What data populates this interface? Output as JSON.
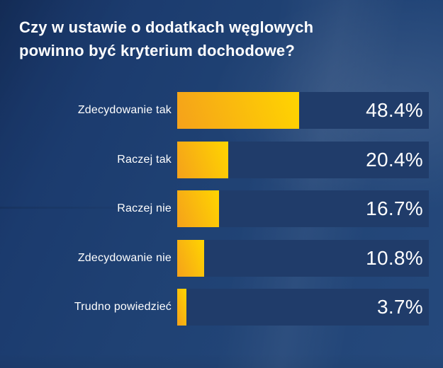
{
  "title": {
    "line1": "Czy w ustawie o dodatkach węglowych",
    "line2": "powinno być kryterium dochodowe?"
  },
  "chart_data": {
    "type": "bar",
    "orientation": "horizontal",
    "title": "Czy w ustawie o dodatkach węglowych powinno być kryterium dochodowe?",
    "categories": [
      "Zdecydowanie tak",
      "Raczej tak",
      "Raczej nie",
      "Zdecydowanie nie",
      "Trudno powiedzieć"
    ],
    "values": [
      48.4,
      20.4,
      16.7,
      10.8,
      3.7
    ],
    "value_labels": [
      "48.4%",
      "20.4%",
      "16.7%",
      "10.8%",
      "3.7%"
    ],
    "unit": "%",
    "xlim": [
      0,
      100
    ],
    "grid": false,
    "legend": false,
    "value_label_position": "inside-track-right"
  },
  "colors": {
    "background_top": "#18366a",
    "background_bottom": "#25497c",
    "track": "#203c6a",
    "bar_gradient_start": "#f5a11b",
    "bar_gradient_end": "#ffd500",
    "text": "#ffffff"
  }
}
